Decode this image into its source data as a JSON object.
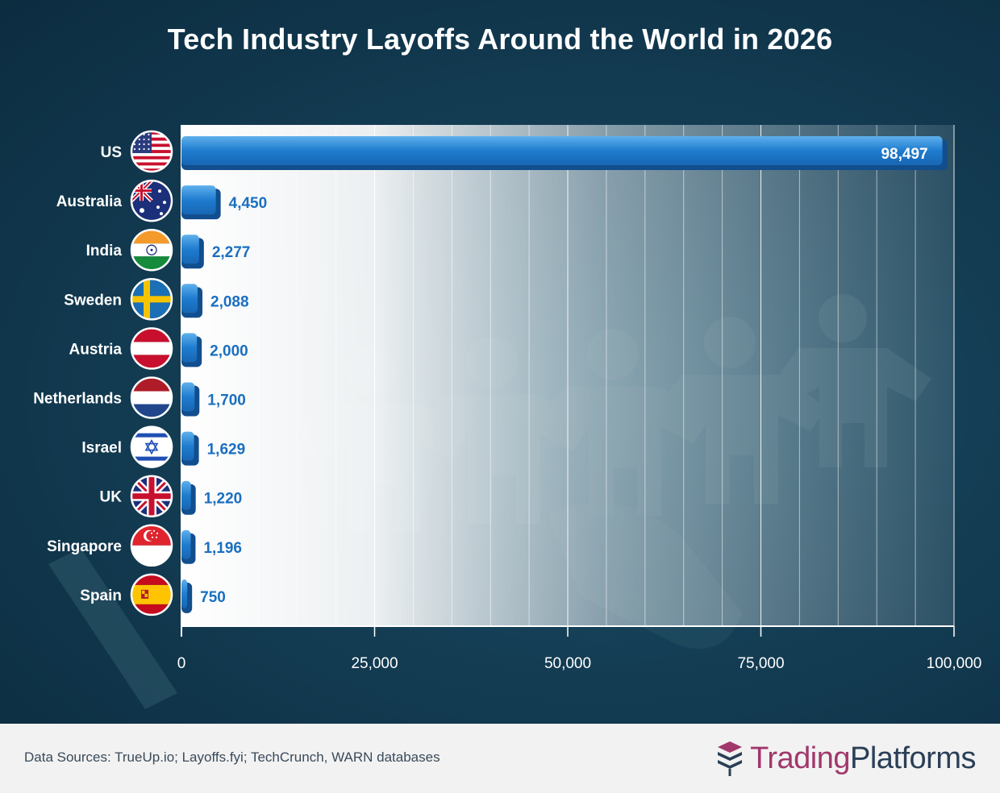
{
  "title": "Tech Industry Layoffs Around the World in 2026",
  "footer": {
    "source": "Data Sources: TrueUp.io; Layoffs.fyi; TechCrunch, WARN databases",
    "brand_part1": "Trading",
    "brand_part2": "Platforms",
    "brand_icon": "stacked-layers-icon"
  },
  "colors": {
    "bar": "#1f7ccf",
    "bar_dark": "#114e8e",
    "value_text_outside": "#1a6fc0",
    "value_text_inside": "#ffffff",
    "brand_accent": "#a0386b",
    "brand_dark": "#2a3f57"
  },
  "chart_data": {
    "type": "bar",
    "orientation": "horizontal",
    "title": "Tech Industry Layoffs Around the World in 2026",
    "categories": [
      "US",
      "Australia",
      "India",
      "Sweden",
      "Austria",
      "Netherlands",
      "Israel",
      "UK",
      "Singapore",
      "Spain"
    ],
    "values": [
      98497,
      4450,
      2277,
      2088,
      2000,
      1700,
      1629,
      1220,
      1196,
      750
    ],
    "value_labels": [
      "98,497",
      "4,450",
      "2,277",
      "2,088",
      "2,000",
      "1,700",
      "1,629",
      "1,220",
      "1,196",
      "750"
    ],
    "flags": [
      "us-flag-icon",
      "australia-flag-icon",
      "india-flag-icon",
      "sweden-flag-icon",
      "austria-flag-icon",
      "netherlands-flag-icon",
      "israel-flag-icon",
      "uk-flag-icon",
      "singapore-flag-icon",
      "spain-flag-icon"
    ],
    "xlim": [
      0,
      100000
    ],
    "xticks": [
      0,
      25000,
      50000,
      75000,
      100000
    ],
    "xtick_labels": [
      "0",
      "25,000",
      "50,000",
      "75,000",
      "100,000"
    ],
    "grid": true,
    "legend": "none"
  }
}
